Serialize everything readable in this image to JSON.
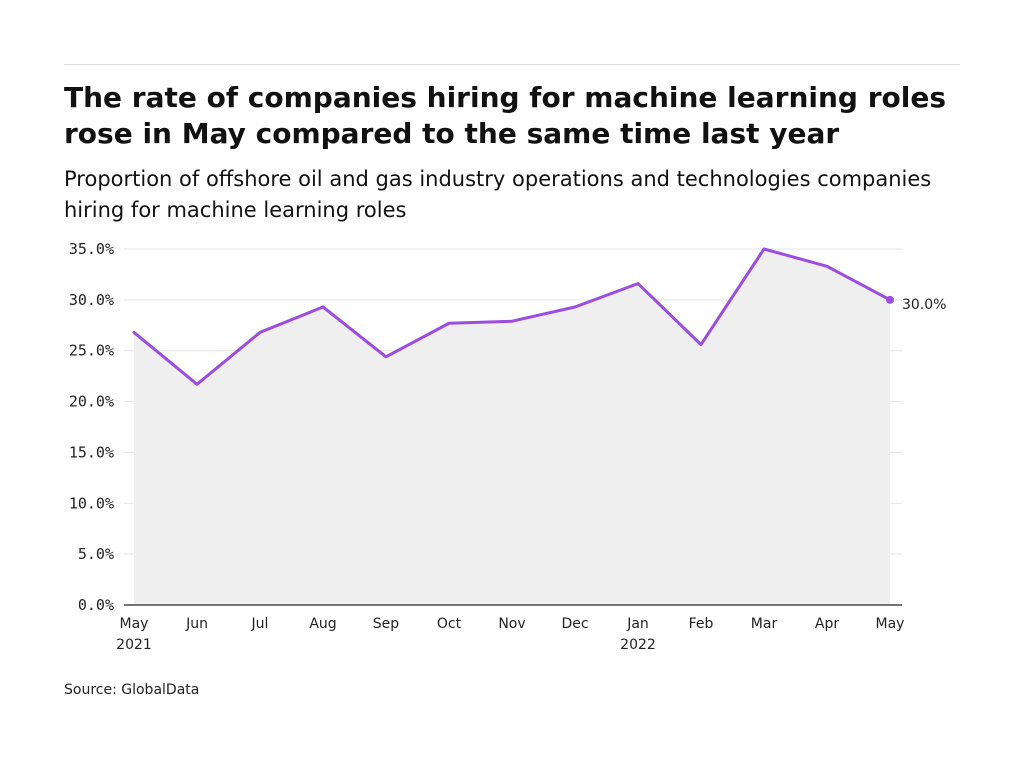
{
  "title": "The rate of companies hiring for machine learning roles rose in May compared to the same time last year",
  "subtitle": "Proportion of offshore oil and gas industry operations and technologies companies hiring for machine learning roles",
  "source": "Source: GlobalData",
  "colors": {
    "line": "#9b4de0",
    "area": "#efefef",
    "grid": "#e3e3e3",
    "axis": "#222222"
  },
  "chart_data": {
    "type": "area",
    "categories": [
      "May 2021",
      "Jun",
      "Jul",
      "Aug",
      "Sep",
      "Oct",
      "Nov",
      "Dec",
      "Jan 2022",
      "Feb",
      "Mar",
      "Apr",
      "May"
    ],
    "x_tick_labels": [
      [
        "May",
        "2021"
      ],
      [
        "Jun"
      ],
      [
        "Jul"
      ],
      [
        "Aug"
      ],
      [
        "Sep"
      ],
      [
        "Oct"
      ],
      [
        "Nov"
      ],
      [
        "Dec"
      ],
      [
        "Jan",
        "2022"
      ],
      [
        "Feb"
      ],
      [
        "Mar"
      ],
      [
        "Apr"
      ],
      [
        "May"
      ]
    ],
    "values": [
      26.8,
      21.7,
      26.8,
      29.3,
      24.4,
      27.7,
      27.9,
      29.3,
      31.6,
      25.6,
      35.0,
      33.3,
      30.0
    ],
    "y_ticks": [
      "0.0%",
      "5.0%",
      "10.0%",
      "15.0%",
      "20.0%",
      "25.0%",
      "30.0%",
      "35.0%"
    ],
    "ylim": [
      0,
      35
    ],
    "grid": true,
    "end_label": "30.0%"
  }
}
